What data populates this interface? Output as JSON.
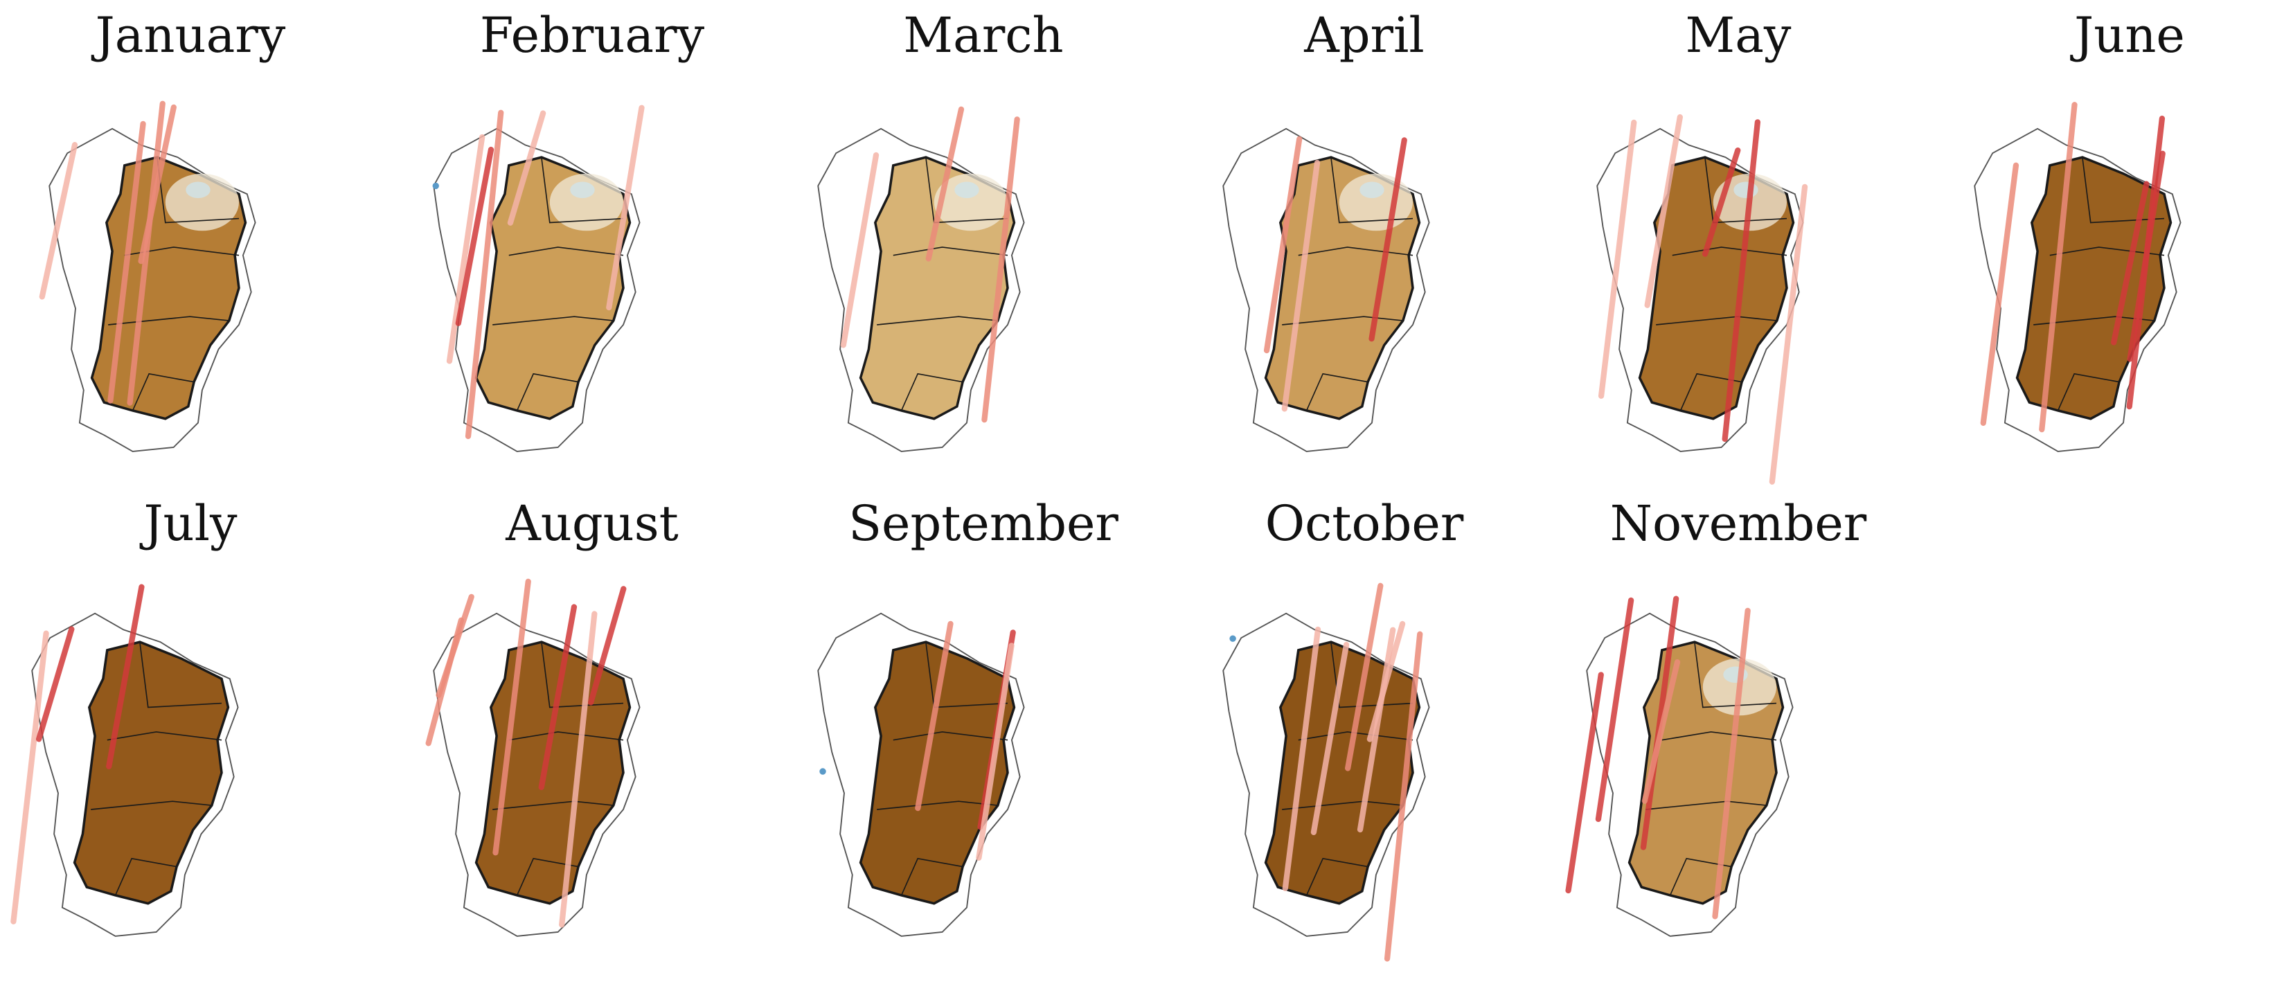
{
  "panels": [
    {
      "month": "January",
      "shade": "light",
      "fill": "#b57d35",
      "pale": true
    },
    {
      "month": "February",
      "shade": "light",
      "fill": "#cc9e58",
      "pale": true
    },
    {
      "month": "March",
      "shade": "light",
      "fill": "#d7b375",
      "pale": true
    },
    {
      "month": "April",
      "shade": "light",
      "fill": "#cb9d5a",
      "pale": true
    },
    {
      "month": "May",
      "shade": "medium",
      "fill": "#a76e29",
      "pale": true
    },
    {
      "month": "June",
      "shade": "dark",
      "fill": "#99601f",
      "pale": false
    },
    {
      "month": "July",
      "shade": "dark",
      "fill": "#93591b",
      "pale": false
    },
    {
      "month": "August",
      "shade": "dark",
      "fill": "#955b1c",
      "pale": false
    },
    {
      "month": "September",
      "shade": "dark",
      "fill": "#8e5618",
      "pale": false
    },
    {
      "month": "October",
      "shade": "dark",
      "fill": "#8c5417",
      "pale": false
    },
    {
      "month": "November",
      "shade": "medium",
      "fill": "#c3924f",
      "pale": true
    }
  ],
  "colors": {
    "outline": "#1a1a1a",
    "thin_outline": "#555555",
    "pale_tone": "#f2ead8",
    "highlight_tone": "#cfe3ea",
    "track_red": "#d23a3a",
    "track_salmon": "#ec8b7a",
    "track_pink": "#f5b4a8",
    "track_blue": "#5a9ac8"
  }
}
